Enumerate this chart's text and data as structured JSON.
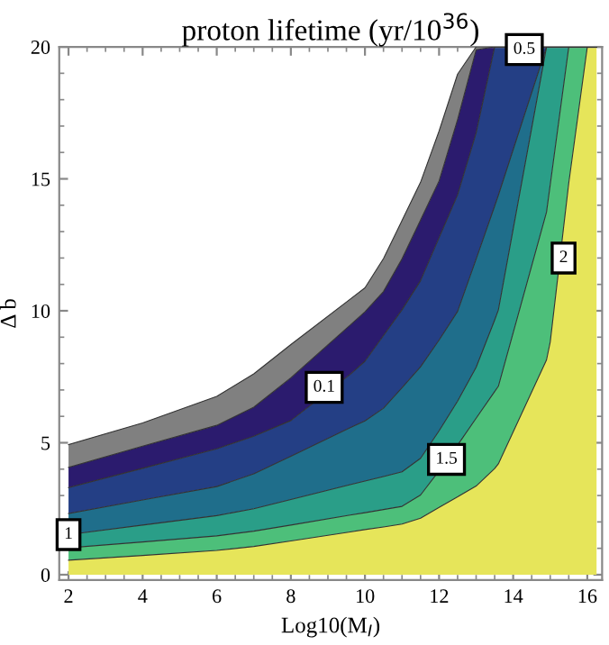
{
  "chart_data": {
    "type": "area",
    "stacked": true,
    "title": "proton lifetime (yr/10$^{36}$)",
    "xlabel": "Log10(M$_{I}$)",
    "ylabel": "Δ b",
    "xlim": [
      1.75,
      16.4
    ],
    "ylim": [
      -0.2,
      20
    ],
    "xticks": [
      2,
      4,
      6,
      8,
      10,
      12,
      14,
      16
    ],
    "yticks": [
      0,
      5,
      10,
      15,
      20
    ],
    "grid": false,
    "legend": false,
    "x": [
      2,
      4,
      6,
      7,
      8,
      9.6,
      10,
      10.5,
      11,
      11.5,
      12,
      12.5,
      13,
      13.5,
      13.6,
      14.9,
      15,
      15.5,
      16,
      16.25
    ],
    "series": [
      {
        "color": "#e6e55a",
        "values": [
          0.55,
          0.73,
          0.92,
          1.07,
          1.28,
          1.62,
          1.71,
          1.81,
          1.92,
          2.14,
          2.55,
          2.95,
          3.36,
          4.02,
          4.2,
          8.14,
          8.82,
          14.84,
          20,
          20
        ]
      },
      {
        "color": "#4dbf7a",
        "values": [
          0.47,
          0.51,
          0.55,
          0.58,
          0.6,
          0.64,
          0.64,
          0.66,
          0.67,
          0.88,
          1.39,
          1.96,
          2.57,
          2.92,
          2.94,
          5.6,
          5.96,
          5.16,
          0,
          0
        ]
      },
      {
        "color": "#2a9e88",
        "values": [
          0.5,
          0.64,
          0.77,
          0.85,
          0.97,
          1.15,
          1.2,
          1.25,
          1.31,
          1.39,
          1.51,
          1.67,
          1.93,
          2.71,
          2.89,
          6.26,
          5.22,
          0,
          0,
          0
        ]
      },
      {
        "color": "#1f6e8b",
        "values": [
          0.8,
          0.95,
          1.1,
          1.32,
          1.64,
          2.16,
          2.28,
          2.59,
          3.19,
          3.47,
          3.44,
          3.4,
          4.1,
          4.32,
          4.35,
          0,
          0,
          0,
          0,
          0
        ]
      },
      {
        "color": "#243f85",
        "values": [
          0.98,
          1.2,
          1.43,
          1.43,
          1.35,
          2.02,
          2.26,
          2.75,
          2.95,
          3.26,
          3.88,
          4.41,
          4.78,
          6.03,
          5.62,
          0,
          0,
          0,
          0,
          0
        ]
      },
      {
        "color": "#2b1b6e",
        "values": [
          0.77,
          0.84,
          0.89,
          1.1,
          1.62,
          1.87,
          1.87,
          1.67,
          1.93,
          2.3,
          2.15,
          2.86,
          3.15,
          0,
          0,
          0,
          0,
          0,
          0,
          0
        ]
      },
      {
        "color": "#808080",
        "values": [
          0.86,
          0.88,
          1.1,
          1.26,
          1.26,
          0.98,
          0.91,
          1.25,
          1.45,
          1.43,
          1.89,
          1.72,
          0.11,
          0,
          0,
          0,
          0,
          0,
          0,
          0
        ]
      }
    ],
    "annotations": [
      {
        "text": "0.1",
        "x": 8.9,
        "y": 7.1
      },
      {
        "text": "0.5",
        "x": 14.3,
        "y": 19.9
      },
      {
        "text": "1",
        "x": 2,
        "y": 1.52
      },
      {
        "text": "1.5",
        "x": 12.2,
        "y": 4.37
      },
      {
        "text": "2",
        "x": 15.36,
        "y": 12.0
      }
    ]
  }
}
